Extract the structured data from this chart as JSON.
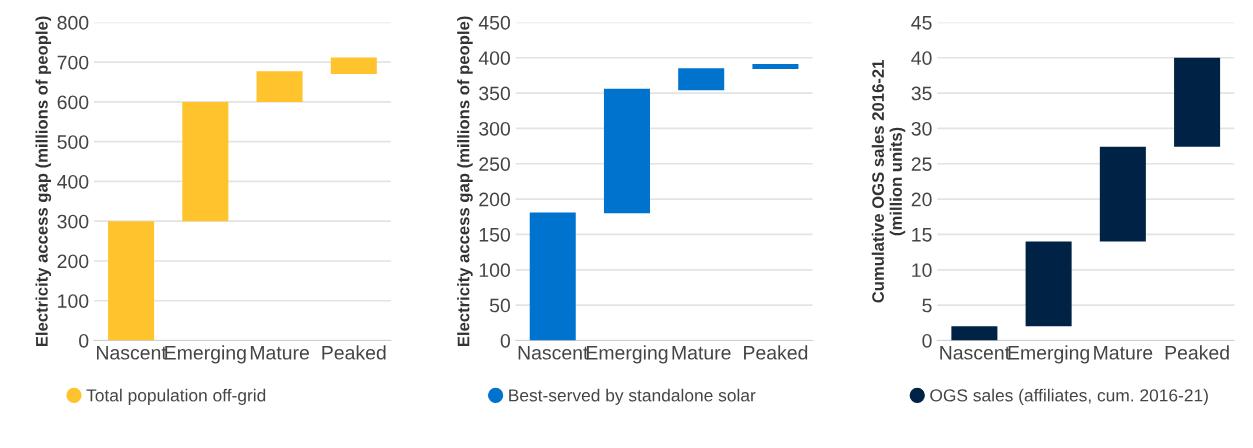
{
  "chart_data": [
    {
      "type": "bar",
      "ylabel": "Electricity access gap (millions of people)",
      "categories": [
        "Nascent",
        "Emerging",
        "Mature",
        "Peaked"
      ],
      "series": [
        {
          "name": "Total population off-grid",
          "color": "#fec32d",
          "values": [
            300,
            300,
            77,
            42
          ],
          "base": [
            0,
            300,
            600,
            670
          ]
        }
      ],
      "ylim": [
        0,
        800
      ],
      "yticks": [
        0,
        100,
        200,
        300,
        400,
        500,
        600,
        700,
        800
      ],
      "grid": "y",
      "legend": "bottom left"
    },
    {
      "type": "bar",
      "ylabel": "Electricity access gap (millions of people)",
      "categories": [
        "Nascent",
        "Emerging",
        "Mature",
        "Peaked"
      ],
      "series": [
        {
          "name": "Best-served by standalone solar",
          "color": "#0073cf",
          "values": [
            181,
            176,
            31,
            7
          ],
          "base": [
            0,
            180,
            354,
            384
          ]
        }
      ],
      "ylim": [
        0,
        450
      ],
      "yticks": [
        0,
        50,
        100,
        150,
        200,
        250,
        300,
        350,
        400,
        450
      ],
      "grid": "y",
      "legend": "bottom left"
    },
    {
      "type": "bar",
      "ylabel": "Cumulative OGS sales 2016-21\n(million units)",
      "categories": [
        "Nascent",
        "Emerging",
        "Mature",
        "Peaked"
      ],
      "series": [
        {
          "name": "OGS sales (affiliates, cum. 2016-21)",
          "color": "#002345",
          "values": [
            2,
            12,
            13.4,
            12.6
          ],
          "base": [
            0,
            2,
            14,
            27.4
          ]
        }
      ],
      "ylim": [
        0,
        45
      ],
      "yticks": [
        0,
        5,
        10,
        15,
        20,
        25,
        30,
        35,
        40,
        45
      ],
      "grid": "y",
      "legend": "bottom left"
    }
  ]
}
